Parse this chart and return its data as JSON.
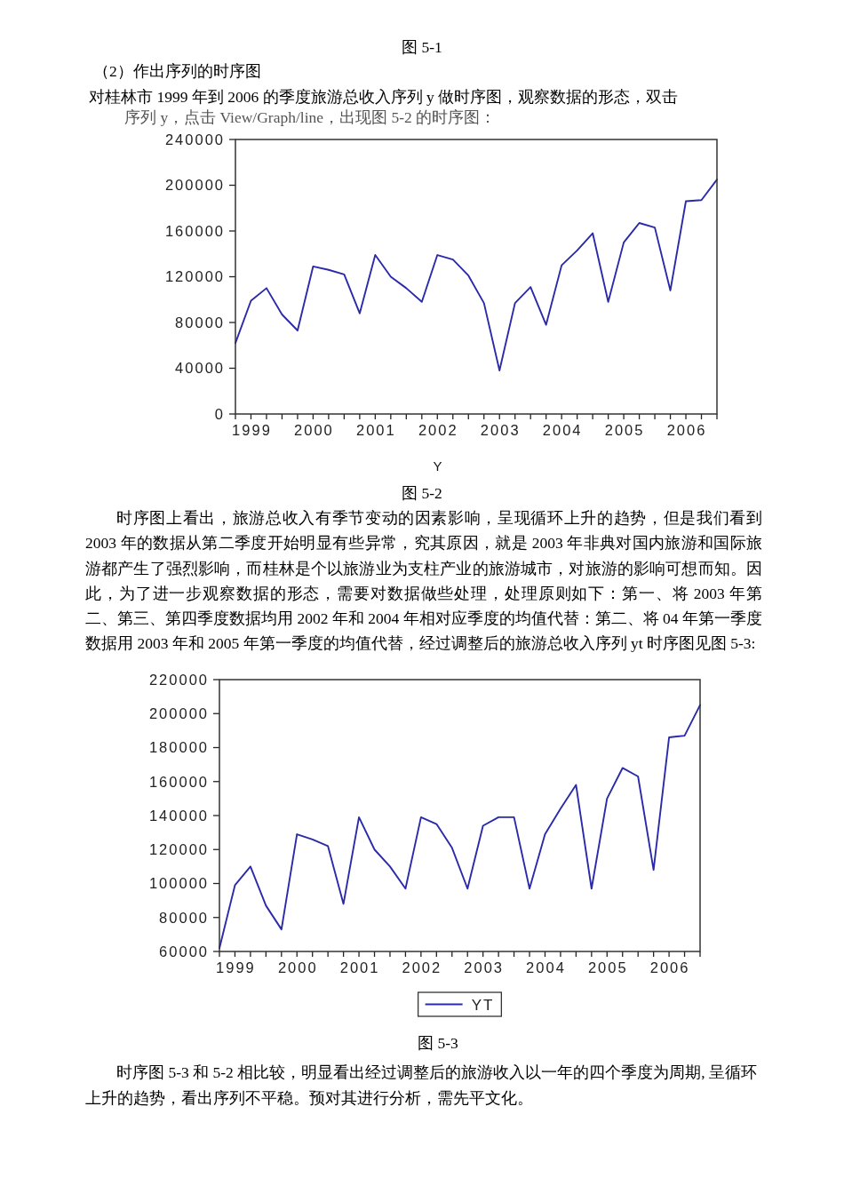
{
  "chart_data": [
    {
      "type": "line",
      "annotations": [
        "图 5-1",
        "（2）作出序列的时序图",
        "对桂林市 1999 年到 2006 的季度旅游总收入序列 y 做时序图，观察数据的形态，双击",
        "序列 y，点击 View/Graph/line，出现图 5-2 的时序图："
      ],
      "title": "图 5-2",
      "xlabel": "Y",
      "categories": [
        null,
        "1999",
        null,
        null,
        null,
        "2000",
        null,
        null,
        null,
        "2001",
        null,
        null,
        null,
        "2002",
        null,
        null,
        null,
        "2003",
        null,
        null,
        null,
        "2004",
        null,
        null,
        null,
        "2005",
        null,
        null,
        null,
        "2006",
        null,
        null
      ],
      "series": [
        {
          "color": "#2a2aaa",
          "values": [
            62000,
            99000,
            110000,
            87000,
            73000,
            129000,
            126000,
            122000,
            88000,
            139000,
            120000,
            110000,
            98000,
            139000,
            135000,
            121000,
            97000,
            38000,
            97000,
            111000,
            78000,
            130000,
            143000,
            158000,
            98000,
            150000,
            167000,
            163000,
            108000,
            186000,
            187000,
            205000
          ]
        }
      ],
      "ylim": [
        0,
        240000
      ],
      "yticks": [
        0,
        40000,
        80000,
        120000,
        160000,
        200000,
        240000
      ],
      "grid": false,
      "legend": false,
      "line_style": "solid"
    },
    {
      "type": "line",
      "annotations": [
        "时序图上看出，旅游总收入有季节变动的因素影响，呈现循环上升的趋势，但是我们看到 2003 年的数据从第二季度开始明显有些异常，究其原因，就是 2003 年非典对国内旅游和国际旅游都产生了强烈影响，而桂林是个以旅游业为支柱产业的旅游城市，对旅游的影响可想而知。因此，为了进一步观察数据的形态，需要对数据做些处理，处理原则如下：第一、将 2003 年第二、第三、第四季度数据均用 2002 年和 2004 年相对应季度的均值代替：第二、将 04 年第一季度数据用 2003 年和 2005 年第一季度的均值代替，经过调整后的旅游总收入序列 yt 时序图见图 5-3:",
        "时序图 5-3 和 5-2 相比较，明显看出经过调整后的旅游收入以一年的四个季度为周期, 呈循环上升的趋势，看出序列不平稳。预对其进行分析，需先平文化。"
      ],
      "title": "图 5-3",
      "categories": [
        null,
        "1999",
        null,
        null,
        null,
        "2000",
        null,
        null,
        null,
        "2001",
        null,
        null,
        null,
        "2002",
        null,
        null,
        null,
        "2003",
        null,
        null,
        null,
        "2004",
        null,
        null,
        null,
        "2005",
        null,
        null,
        null,
        "2006",
        null,
        null
      ],
      "series": [
        {
          "name": "YT",
          "color": "#2a2aaa",
          "values": [
            62000,
            99000,
            110000,
            87000,
            73000,
            129000,
            126000,
            122000,
            88000,
            139000,
            120000,
            110000,
            97000,
            139000,
            135000,
            121000,
            97000,
            134000,
            139000,
            139000,
            97000,
            129000,
            144000,
            158000,
            97000,
            150000,
            168000,
            163000,
            108000,
            186000,
            187000,
            205000
          ]
        }
      ],
      "ylim": [
        60000,
        220000
      ],
      "yticks": [
        60000,
        80000,
        100000,
        120000,
        140000,
        160000,
        180000,
        200000,
        220000
      ],
      "grid": false,
      "legend": "bottom",
      "line_style": "solid"
    }
  ]
}
